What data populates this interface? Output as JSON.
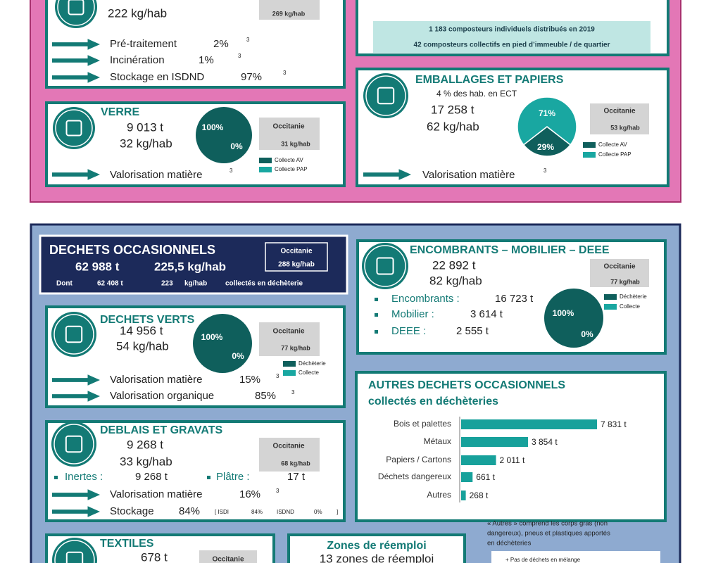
{
  "top_section": {
    "residual": {
      "per_hab": "222 kg/hab",
      "occitanie": "269 kg/hab",
      "rows": [
        {
          "label": "Pré-traitement",
          "share": "2%",
          "note": "3"
        },
        {
          "label": "Incinération",
          "share": "1%",
          "note": "3"
        },
        {
          "label": "Stockage en ISDND",
          "share": "97%",
          "note": "3"
        }
      ]
    },
    "compost": {
      "lines": [
        "1 183 composteurs individuels distribués en 2019",
        "42 composteurs collectifs en pied d’immeuble / de quartier"
      ]
    },
    "verre": {
      "title": "VERRE",
      "tonnage": "9 013 t",
      "per_hab": "32 kg/hab",
      "occitanie_label": "Occitanie",
      "occitanie": "31 kg/hab",
      "pie": {
        "values": [
          100,
          0
        ],
        "value_labels": [
          "100%",
          "0%"
        ]
      },
      "legend": [
        {
          "name": "Collecte AV",
          "color": "#0f5f5c"
        },
        {
          "name": "Collecte PAP",
          "color": "#19a7a1"
        }
      ],
      "outcome": {
        "label": "Valorisation matière",
        "note": "3"
      }
    },
    "emballages": {
      "title": "EMBALLAGES ET PAPIERS",
      "ect": "4  % des hab. en ECT",
      "tonnage": "17 258 t",
      "per_hab": "62 kg/hab",
      "occitanie_label": "Occitanie",
      "occitanie": "53 kg/hab",
      "pie": {
        "values": [
          29,
          71
        ],
        "value_labels": [
          "29%",
          "71%"
        ]
      },
      "legend": [
        {
          "name": "Collecte AV",
          "color": "#0f5f5c"
        },
        {
          "name": "Collecte PAP",
          "color": "#19a7a1"
        }
      ],
      "outcome": {
        "label": "Valorisation matière",
        "note": "3"
      }
    }
  },
  "bottom_section": {
    "occasionnels": {
      "title": "DECHETS OCCASIONNELS",
      "tonnage": "62 988 t",
      "per_hab": "225,5 kg/hab",
      "occitanie_label": "Occitanie",
      "occitanie": "288 kg/hab",
      "dont": {
        "label": "Dont",
        "tonnage": "62 408 t",
        "per_hab": "223",
        "unit": "kg/hab",
        "suffix": "collectés en déchèterie"
      }
    },
    "encombrants": {
      "title": "ENCOMBRANTS – MOBILIER – DEEE",
      "tonnage": "22 892 t",
      "per_hab": "82 kg/hab",
      "occitanie_label": "Occitanie",
      "occitanie": "77 kg/hab",
      "items": [
        {
          "label": "Encombrants :",
          "tonnage": "16 723 t"
        },
        {
          "label": "Mobilier :",
          "tonnage": "3 614 t"
        },
        {
          "label": "DEEE :",
          "tonnage": "2 555 t"
        }
      ],
      "pie": {
        "values": [
          100,
          0
        ],
        "value_labels": [
          "100%",
          "0%"
        ]
      },
      "legend": [
        {
          "name": "Déchèterie",
          "color": "#0f5f5c"
        },
        {
          "name": "Collecte",
          "color": "#19a7a1"
        }
      ]
    },
    "verts": {
      "title": "DECHETS VERTS",
      "tonnage": "14 956 t",
      "per_hab": "54 kg/hab",
      "occitanie_label": "Occitanie",
      "occitanie": "77 kg/hab",
      "pie": {
        "values": [
          100,
          0
        ],
        "value_labels": [
          "100%",
          "0%"
        ]
      },
      "legend": [
        {
          "name": "Déchèterie",
          "color": "#0f5f5c"
        },
        {
          "name": "Collecte",
          "color": "#19a7a1"
        }
      ],
      "outcomes": [
        {
          "label": "Valorisation matière",
          "share": "15%",
          "note": "3"
        },
        {
          "label": "Valorisation organique",
          "share": "85%",
          "note": "3"
        }
      ]
    },
    "autres": {
      "title": "AUTRES DECHETS OCCASIONNELS",
      "subtitle": "collectés en déchèteries",
      "categories": [
        "Bois et palettes",
        "Métaux",
        "Papiers / Cartons",
        "Déchets dangereux",
        "Autres"
      ],
      "values": [
        7831,
        3854,
        2011,
        661,
        268
      ],
      "value_labels": [
        "7 831 t",
        "3 854 t",
        "2 011 t",
        "661 t",
        "268 t"
      ],
      "color": "#17a19b",
      "note": [
        "« Autres » comprend les corps gras (non",
        "dangereux), pneus et plastiques apportés",
        "en déchèteries"
      ]
    },
    "deblais": {
      "title": "DEBLAIS ET GRAVATS",
      "tonnage": "9 268 t",
      "per_hab": "33 kg/hab",
      "occitanie_label": "Occitanie",
      "occitanie": "68 kg/hab",
      "split": [
        {
          "label": "Inertes :",
          "tonnage": "9 268 t"
        },
        {
          "label": "Plâtre :",
          "tonnage": "17 t"
        }
      ],
      "outcomes": [
        {
          "label": "Valorisation matière",
          "share": "16%",
          "note": "3"
        },
        {
          "label": "Stockage",
          "share": "84%",
          "detail": [
            "[ ISDI",
            "84%",
            "ISDND",
            "0%",
            "]"
          ]
        }
      ]
    },
    "textiles": {
      "title": "TEXTILES",
      "tonnage": "678 t",
      "occitanie_label": "Occitanie"
    },
    "reemploi": {
      "title": "Zones de réemploi",
      "count": "13 zones de réemploi"
    },
    "footnote": "+ Pas de déchets en mélange"
  }
}
